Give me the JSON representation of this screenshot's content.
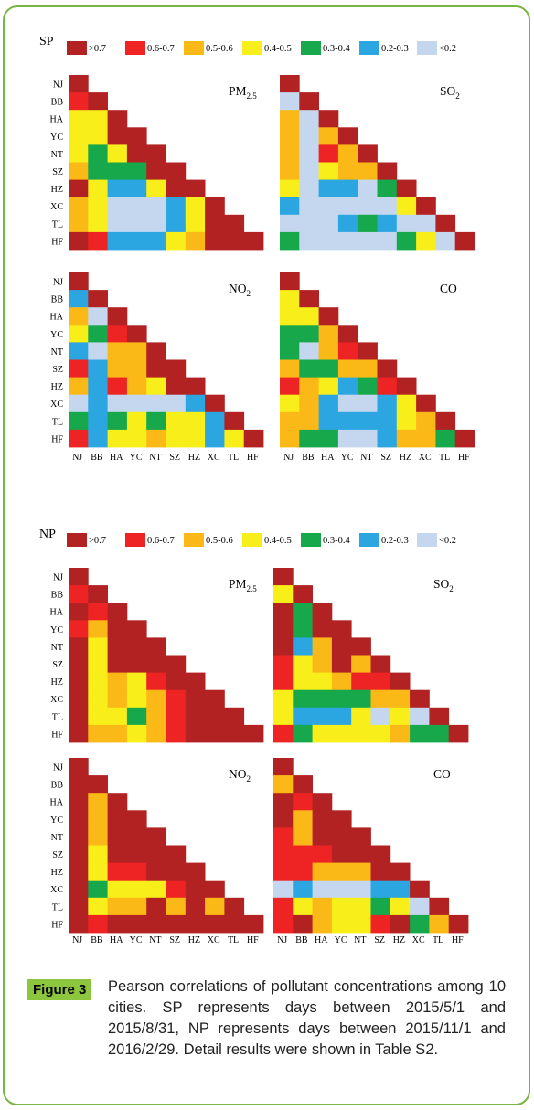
{
  "legend": {
    "items": [
      {
        "label": ">0.7",
        "color": "#b22222"
      },
      {
        "label": "0.6-0.7",
        "color": "#ee2424"
      },
      {
        "label": "0.5-0.6",
        "color": "#fbb917"
      },
      {
        "label": "0.4-0.5",
        "color": "#f7ee1a"
      },
      {
        "label": "0.3-0.4",
        "color": "#16a84a"
      },
      {
        "label": "0.2-0.3",
        "color": "#2ba6e0"
      },
      {
        "label": "<0.2",
        "color": "#c4d7ef"
      }
    ]
  },
  "cities": [
    "NJ",
    "BB",
    "HA",
    "YC",
    "NT",
    "SZ",
    "HZ",
    "XC",
    "TL",
    "HF"
  ],
  "chart_data": [
    {
      "type": "heatmap",
      "title": "SP",
      "matrices": [
        {
          "pollutant": "PM",
          "sub": "2.5",
          "rows": [
            [
              0
            ],
            [
              1,
              0
            ],
            [
              3,
              3,
              0
            ],
            [
              3,
              3,
              0,
              0
            ],
            [
              3,
              4,
              3,
              0,
              0
            ],
            [
              2,
              4,
              4,
              4,
              0,
              0
            ],
            [
              0,
              3,
              5,
              5,
              3,
              0,
              0
            ],
            [
              2,
              3,
              6,
              6,
              6,
              5,
              3,
              0
            ],
            [
              2,
              3,
              6,
              6,
              6,
              5,
              3,
              0,
              0
            ],
            [
              0,
              1,
              5,
              5,
              5,
              3,
              2,
              0,
              0,
              0
            ]
          ]
        },
        {
          "pollutant": "SO",
          "sub": "2",
          "rows": [
            [
              0
            ],
            [
              6,
              0
            ],
            [
              2,
              6,
              0
            ],
            [
              2,
              6,
              2,
              0
            ],
            [
              2,
              6,
              1,
              2,
              0
            ],
            [
              2,
              6,
              3,
              2,
              2,
              0
            ],
            [
              3,
              6,
              5,
              5,
              6,
              4,
              0
            ],
            [
              5,
              6,
              6,
              6,
              6,
              6,
              3,
              0
            ],
            [
              6,
              6,
              6,
              5,
              4,
              5,
              6,
              6,
              0
            ],
            [
              4,
              6,
              6,
              6,
              6,
              6,
              4,
              3,
              6,
              0
            ]
          ]
        },
        {
          "pollutant": "NO",
          "sub": "2",
          "rows": [
            [
              0
            ],
            [
              5,
              0
            ],
            [
              2,
              6,
              0
            ],
            [
              3,
              4,
              1,
              0
            ],
            [
              5,
              6,
              2,
              2,
              0
            ],
            [
              1,
              5,
              2,
              2,
              0,
              0
            ],
            [
              2,
              5,
              1,
              2,
              3,
              0,
              0
            ],
            [
              6,
              5,
              6,
              6,
              6,
              6,
              5,
              0
            ],
            [
              4,
              5,
              4,
              3,
              4,
              3,
              3,
              5,
              0
            ],
            [
              1,
              5,
              3,
              3,
              2,
              3,
              3,
              5,
              3,
              0
            ]
          ]
        },
        {
          "pollutant": "CO",
          "sub": "",
          "rows": [
            [
              0
            ],
            [
              3,
              0
            ],
            [
              3,
              3,
              0
            ],
            [
              4,
              4,
              2,
              0
            ],
            [
              4,
              6,
              2,
              1,
              0
            ],
            [
              2,
              4,
              4,
              2,
              2,
              0
            ],
            [
              1,
              2,
              3,
              5,
              4,
              1,
              0
            ],
            [
              3,
              2,
              5,
              6,
              6,
              5,
              3,
              0
            ],
            [
              2,
              2,
              5,
              5,
              5,
              5,
              3,
              2,
              0
            ],
            [
              2,
              4,
              4,
              6,
              6,
              5,
              2,
              2,
              4,
              0
            ]
          ]
        }
      ]
    },
    {
      "type": "heatmap",
      "title": "NP",
      "matrices": [
        {
          "pollutant": "PM",
          "sub": "2.5",
          "rows": [
            [
              0
            ],
            [
              1,
              0
            ],
            [
              0,
              1,
              0
            ],
            [
              1,
              2,
              0,
              0
            ],
            [
              0,
              3,
              0,
              0,
              0
            ],
            [
              0,
              3,
              0,
              0,
              0,
              0
            ],
            [
              0,
              3,
              2,
              3,
              1,
              0,
              0
            ],
            [
              0,
              3,
              2,
              3,
              2,
              1,
              0,
              0
            ],
            [
              0,
              3,
              3,
              4,
              2,
              1,
              0,
              0,
              0
            ],
            [
              0,
              2,
              2,
              3,
              2,
              1,
              0,
              0,
              0,
              0
            ]
          ]
        },
        {
          "pollutant": "SO",
          "sub": "2",
          "rows": [
            [
              0
            ],
            [
              3,
              0
            ],
            [
              0,
              4,
              0
            ],
            [
              0,
              4,
              0,
              0
            ],
            [
              0,
              5,
              2,
              0,
              0
            ],
            [
              1,
              3,
              2,
              0,
              2,
              0
            ],
            [
              1,
              3,
              3,
              2,
              1,
              1,
              0
            ],
            [
              3,
              4,
              4,
              4,
              4,
              2,
              2,
              0
            ],
            [
              3,
              5,
              5,
              5,
              3,
              6,
              3,
              6,
              0
            ],
            [
              1,
              4,
              3,
              3,
              3,
              3,
              2,
              4,
              4,
              0
            ]
          ]
        },
        {
          "pollutant": "NO",
          "sub": "2",
          "rows": [
            [
              0
            ],
            [
              0,
              0
            ],
            [
              0,
              2,
              0
            ],
            [
              0,
              2,
              0,
              0
            ],
            [
              0,
              2,
              0,
              0,
              0
            ],
            [
              0,
              3,
              0,
              0,
              0,
              0
            ],
            [
              0,
              3,
              1,
              1,
              0,
              0,
              0
            ],
            [
              0,
              4,
              3,
              3,
              3,
              1,
              0,
              0
            ],
            [
              0,
              3,
              2,
              2,
              0,
              2,
              0,
              2,
              0
            ],
            [
              0,
              1,
              0,
              0,
              0,
              0,
              0,
              0,
              0,
              0
            ]
          ]
        },
        {
          "pollutant": "CO",
          "sub": "",
          "rows": [
            [
              0
            ],
            [
              2,
              0
            ],
            [
              0,
              1,
              0
            ],
            [
              0,
              2,
              0,
              0
            ],
            [
              1,
              2,
              0,
              0,
              0
            ],
            [
              1,
              1,
              1,
              0,
              0,
              0
            ],
            [
              1,
              1,
              2,
              2,
              2,
              0,
              0
            ],
            [
              6,
              5,
              6,
              6,
              6,
              5,
              5,
              0
            ],
            [
              1,
              3,
              2,
              3,
              3,
              4,
              3,
              6,
              0
            ],
            [
              1,
              0,
              2,
              3,
              3,
              1,
              0,
              4,
              2,
              0
            ]
          ]
        }
      ]
    }
  ],
  "caption": {
    "label": "Figure 3",
    "text": "Pearson correlations of pollutant concentrations among 10 cities. SP represents days between 2015/5/1 and 2015/8/31, NP represents days between 2015/11/1 and 2016/2/29. Detail results were shown in Table S2."
  }
}
